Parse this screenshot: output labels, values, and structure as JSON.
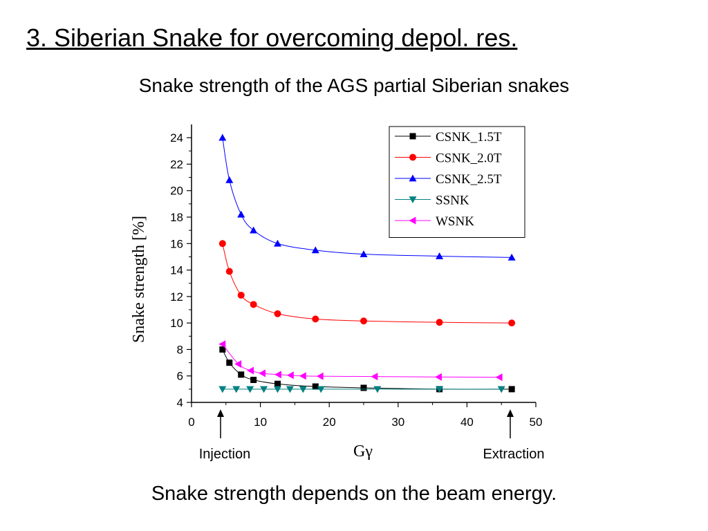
{
  "slide": {
    "title": "3. Siberian Snake for overcoming depol. res.",
    "subtitle": "Snake strength of the AGS partial Siberian snakes",
    "footer": "Snake strength depends on the beam energy."
  },
  "annotations": {
    "injection": "Injection",
    "extraction": "Extraction"
  },
  "chart_data": {
    "type": "line",
    "xlabel": "Gγ",
    "ylabel": "Snake strength [%]",
    "xlim": [
      0,
      50
    ],
    "ylim": [
      4,
      25
    ],
    "x_ticks": [
      0,
      10,
      20,
      30,
      40,
      50
    ],
    "y_ticks": [
      4,
      6,
      8,
      10,
      12,
      14,
      16,
      18,
      20,
      22,
      24
    ],
    "grid": false,
    "legend_position": "top-right",
    "series": [
      {
        "name": "CSNK_1.5T",
        "color": "#000000",
        "marker": "square",
        "x": [
          4.5,
          5.5,
          7.2,
          9.0,
          12.5,
          18.0,
          25.0,
          36.0,
          46.5
        ],
        "y": [
          8.0,
          7.0,
          6.1,
          5.7,
          5.4,
          5.2,
          5.1,
          5.0,
          5.0
        ]
      },
      {
        "name": "CSNK_2.0T",
        "color": "#ff0000",
        "marker": "circle",
        "x": [
          4.5,
          5.5,
          7.2,
          9.0,
          12.5,
          18.0,
          25.0,
          36.0,
          46.5
        ],
        "y": [
          16.0,
          13.9,
          12.1,
          11.4,
          10.7,
          10.3,
          10.15,
          10.05,
          10.0
        ]
      },
      {
        "name": "CSNK_2.5T",
        "color": "#0000ff",
        "marker": "triangle-up",
        "x": [
          4.5,
          5.5,
          7.2,
          9.0,
          12.5,
          18.0,
          25.0,
          36.0,
          46.5
        ],
        "y": [
          24.0,
          20.8,
          18.2,
          17.0,
          16.0,
          15.5,
          15.2,
          15.05,
          14.95
        ]
      },
      {
        "name": "SSNK",
        "color": "#008080",
        "marker": "triangle-down",
        "x": [
          4.5,
          6.5,
          8.5,
          10.5,
          12.5,
          14.3,
          16.2,
          18.8,
          27.0,
          36.0,
          45.0
        ],
        "y": [
          5.0,
          5.0,
          5.0,
          5.0,
          5.0,
          5.0,
          5.0,
          5.0,
          5.0,
          5.0,
          5.0
        ]
      },
      {
        "name": "WSNK",
        "color": "#ff00ff",
        "marker": "triangle-left",
        "x": [
          4.5,
          6.8,
          8.6,
          10.3,
          12.6,
          14.4,
          16.2,
          18.7,
          26.6,
          35.9,
          44.7
        ],
        "y": [
          8.4,
          6.9,
          6.4,
          6.2,
          6.1,
          6.05,
          6.0,
          5.98,
          5.95,
          5.92,
          5.9
        ]
      }
    ]
  }
}
